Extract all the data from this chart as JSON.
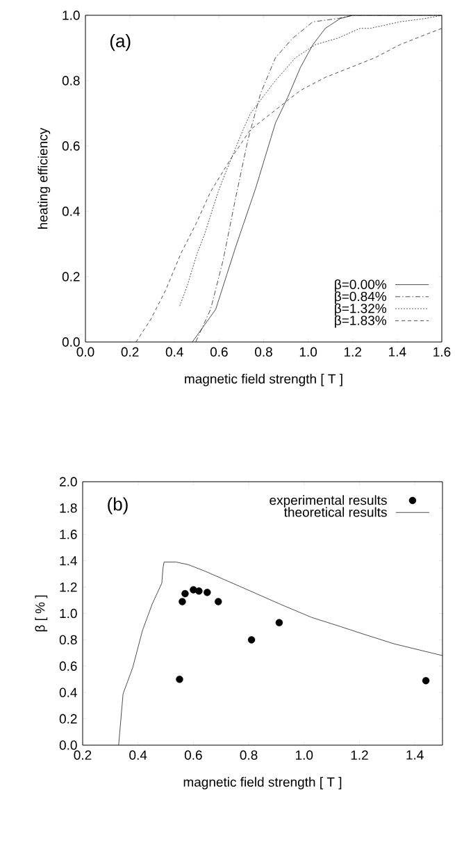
{
  "chart_data": [
    {
      "type": "line",
      "xlabel": "magnetic field strength [ T ]",
      "ylabel": "heating efficiency",
      "annotations": [
        "(a)"
      ],
      "legend": "bottom right",
      "xlim": [
        0,
        1.6
      ],
      "ylim": [
        0,
        1.0
      ],
      "xticks": [
        {
          "value": 0,
          "label": "0.0"
        },
        {
          "value": 0.2,
          "label": "0.2"
        },
        {
          "value": 0.4,
          "label": "0.4"
        },
        {
          "value": 0.6,
          "label": "0.6"
        },
        {
          "value": 0.8,
          "label": "0.8"
        },
        {
          "value": 1.0,
          "label": "1.0"
        },
        {
          "value": 1.2,
          "label": "1.2"
        },
        {
          "value": 1.4,
          "label": "1.4"
        },
        {
          "value": 1.6,
          "label": "1.6"
        }
      ],
      "yticks": [
        {
          "value": 0,
          "label": "0.0"
        },
        {
          "value": 0.2,
          "label": "0.2"
        },
        {
          "value": 0.4,
          "label": "0.4"
        },
        {
          "value": 0.6,
          "label": "0.6"
        },
        {
          "value": 0.8,
          "label": "0.8"
        },
        {
          "value": 1.0,
          "label": "1.0"
        }
      ],
      "series": [
        {
          "name": "β=0.00%",
          "color": "#000000",
          "line_style": "solid",
          "x": [
            0.48,
            0.585,
            0.674,
            0.764,
            0.853,
            0.909,
            0.965,
            1.021,
            1.077,
            1.144,
            1.2,
            1.6
          ],
          "values": [
            0,
            0.1,
            0.29,
            0.47,
            0.67,
            0.75,
            0.84,
            0.91,
            0.96,
            0.99,
            1.0,
            1.0
          ]
        },
        {
          "name": "β=0.84%",
          "color": "#000000",
          "line_style": "dashdot",
          "x": [
            0.495,
            0.562,
            0.618,
            0.674,
            0.73,
            0.786,
            0.853,
            0.931,
            1.021,
            1.133,
            1.2,
            1.6
          ],
          "values": [
            0,
            0.1,
            0.25,
            0.44,
            0.62,
            0.76,
            0.87,
            0.93,
            0.98,
            0.99,
            1.0,
            1.0
          ]
        },
        {
          "name": "β=1.32%",
          "color": "#000000",
          "line_style": "dotted",
          "x": [
            0.423,
            0.456,
            0.501,
            0.535,
            0.596,
            0.63,
            0.708,
            0.741,
            0.853,
            0.943,
            1.032,
            1.133,
            1.233,
            1.278,
            1.412,
            1.524,
            1.6
          ],
          "values": [
            0.11,
            0.17,
            0.27,
            0.33,
            0.46,
            0.52,
            0.65,
            0.7,
            0.8,
            0.87,
            0.91,
            0.93,
            0.96,
            0.96,
            0.98,
            0.99,
            1.0
          ]
        },
        {
          "name": "β=1.83%",
          "color": "#000000",
          "line_style": "dashed",
          "x": [
            0.227,
            0.294,
            0.361,
            0.428,
            0.495,
            0.562,
            0.652,
            0.741,
            0.853,
            0.965,
            1.077,
            1.189,
            1.3,
            1.412,
            1.524,
            1.6
          ],
          "values": [
            0,
            0.07,
            0.16,
            0.27,
            0.36,
            0.46,
            0.56,
            0.65,
            0.71,
            0.77,
            0.81,
            0.84,
            0.87,
            0.91,
            0.94,
            0.96
          ]
        }
      ]
    },
    {
      "type": "scatter",
      "xlabel": "magnetic field strength [ T ]",
      "ylabel": "β  [ % ]",
      "annotations": [
        "(b)"
      ],
      "legend": "top right",
      "xlim": [
        0.2,
        1.5
      ],
      "ylim": [
        0,
        2.0
      ],
      "xticks": [
        {
          "value": 0.2,
          "label": "0.2"
        },
        {
          "value": 0.4,
          "label": "0.4"
        },
        {
          "value": 0.6,
          "label": "0.6"
        },
        {
          "value": 0.8,
          "label": "0.8"
        },
        {
          "value": 1.0,
          "label": "1.0"
        },
        {
          "value": 1.2,
          "label": "1.2"
        },
        {
          "value": 1.4,
          "label": "1.4"
        }
      ],
      "yticks": [
        {
          "value": 0,
          "label": "0.0"
        },
        {
          "value": 0.2,
          "label": "0.2"
        },
        {
          "value": 0.4,
          "label": "0.4"
        },
        {
          "value": 0.6,
          "label": "0.6"
        },
        {
          "value": 0.8,
          "label": "0.8"
        },
        {
          "value": 1.0,
          "label": "1.0"
        },
        {
          "value": 1.2,
          "label": "1.2"
        },
        {
          "value": 1.4,
          "label": "1.4"
        },
        {
          "value": 1.6,
          "label": "1.6"
        },
        {
          "value": 1.8,
          "label": "1.8"
        },
        {
          "value": 2.0,
          "label": "2.0"
        }
      ],
      "series": [
        {
          "name": "experimental results",
          "type": "scatter",
          "marker": "circle",
          "color": "#000000",
          "x": [
            0.55,
            0.56,
            0.57,
            0.6,
            0.62,
            0.65,
            0.69,
            0.81,
            0.91,
            1.44
          ],
          "values": [
            0.5,
            1.09,
            1.15,
            1.18,
            1.17,
            1.16,
            1.09,
            0.8,
            0.93,
            0.49
          ]
        },
        {
          "name": "theoretical results",
          "type": "line",
          "marker": "none",
          "color": "#000000",
          "line_style": "solid",
          "x": [
            0.33,
            0.346,
            0.381,
            0.416,
            0.451,
            0.486,
            0.49,
            0.494,
            0.538,
            0.582,
            0.643,
            0.73,
            0.817,
            0.914,
            1.027,
            1.132,
            1.219,
            1.324,
            1.5
          ],
          "values": [
            0,
            0.39,
            0.59,
            0.87,
            1.07,
            1.23,
            1.34,
            1.39,
            1.39,
            1.37,
            1.32,
            1.24,
            1.16,
            1.07,
            0.97,
            0.9,
            0.84,
            0.77,
            0.68
          ]
        }
      ]
    }
  ]
}
